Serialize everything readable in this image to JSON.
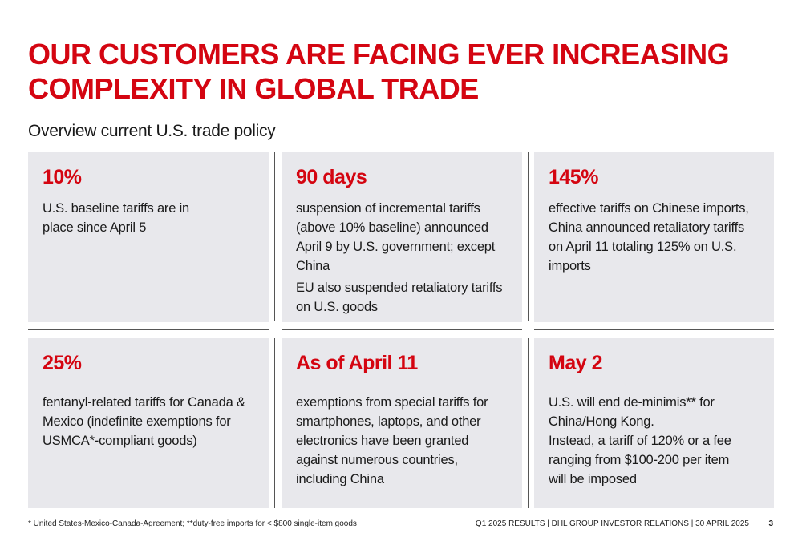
{
  "title": {
    "line1": "OUR CUSTOMERS ARE FACING EVER INCREASING",
    "line2": "COMPLEXITY IN GLOBAL TRADE"
  },
  "subtitle": "Overview current U.S. trade policy",
  "cards": [
    {
      "value": "10%",
      "text": [
        "U.S. baseline tariffs are in place since April 5"
      ]
    },
    {
      "value": "90 days",
      "text": [
        "suspension of incremental tariffs (above 10% baseline) announced April 9 by U.S. government; except China",
        "EU also suspended retaliatory tariffs on U.S. goods"
      ]
    },
    {
      "value": "145%",
      "text": [
        "effective tariffs on Chinese imports, China announced retaliatory tariffs on April 11 totaling 125% on U.S. imports"
      ]
    },
    {
      "value": "25%",
      "text": [
        "fentanyl-related tariffs for Canada & Mexico (indefinite exemptions for USMCA*-compliant goods)"
      ]
    },
    {
      "value": "As of April 11",
      "text": [
        "exemptions from special tariffs for smartphones, laptops, and other electronics have been granted against numerous countries, including China"
      ]
    },
    {
      "value": "May 2",
      "text": [
        "U.S. will end de-minimis** for China/Hong Kong.",
        "Instead, a tariff of 120% or a fee ranging from $100-200 per item will be imposed"
      ]
    }
  ],
  "footer": {
    "note": "* United States-Mexico-Canada-Agreement; **duty-free imports for < $800 single-item goods",
    "source": "Q1 2025 RESULTS | DHL GROUP INVESTOR RELATIONS | 30 APRIL 2025",
    "page": "3"
  }
}
